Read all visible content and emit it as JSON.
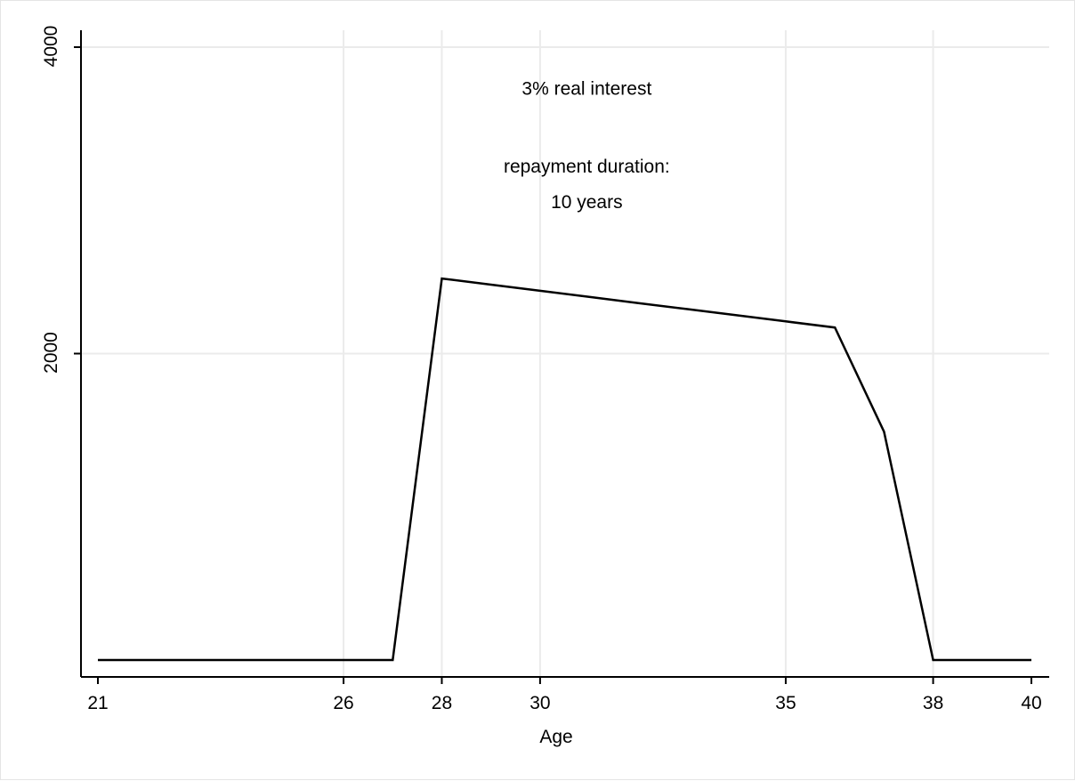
{
  "chart_data": {
    "type": "line",
    "title": "",
    "xlabel": "Age",
    "ylabel": "",
    "xlim": [
      21,
      40
    ],
    "ylim": [
      -100,
      4000
    ],
    "x_ticks": [
      21,
      26,
      28,
      30,
      35,
      38,
      40
    ],
    "y_ticks": [
      2000,
      4000
    ],
    "grid": true,
    "colors": {
      "line": "#000000",
      "grid": "#ebebeb",
      "axis": "#000000"
    },
    "annotations": [
      {
        "text": "3% real interest",
        "x": 30.95,
        "y": 3690
      },
      {
        "text": "repayment duration:",
        "x": 30.95,
        "y": 3180
      },
      {
        "text": "10 years",
        "x": 30.95,
        "y": 2950
      }
    ],
    "series": [
      {
        "x": [
          21,
          22,
          23,
          24,
          25,
          26,
          27,
          28,
          29,
          30,
          31,
          32,
          33,
          34,
          35,
          36,
          37,
          38,
          39,
          40
        ],
        "values": [
          0,
          0,
          0,
          0,
          0,
          0,
          0,
          2490,
          2450,
          2410,
          2370,
          2330,
          2290,
          2250,
          2210,
          2170,
          1490,
          0,
          0,
          0
        ]
      }
    ]
  }
}
